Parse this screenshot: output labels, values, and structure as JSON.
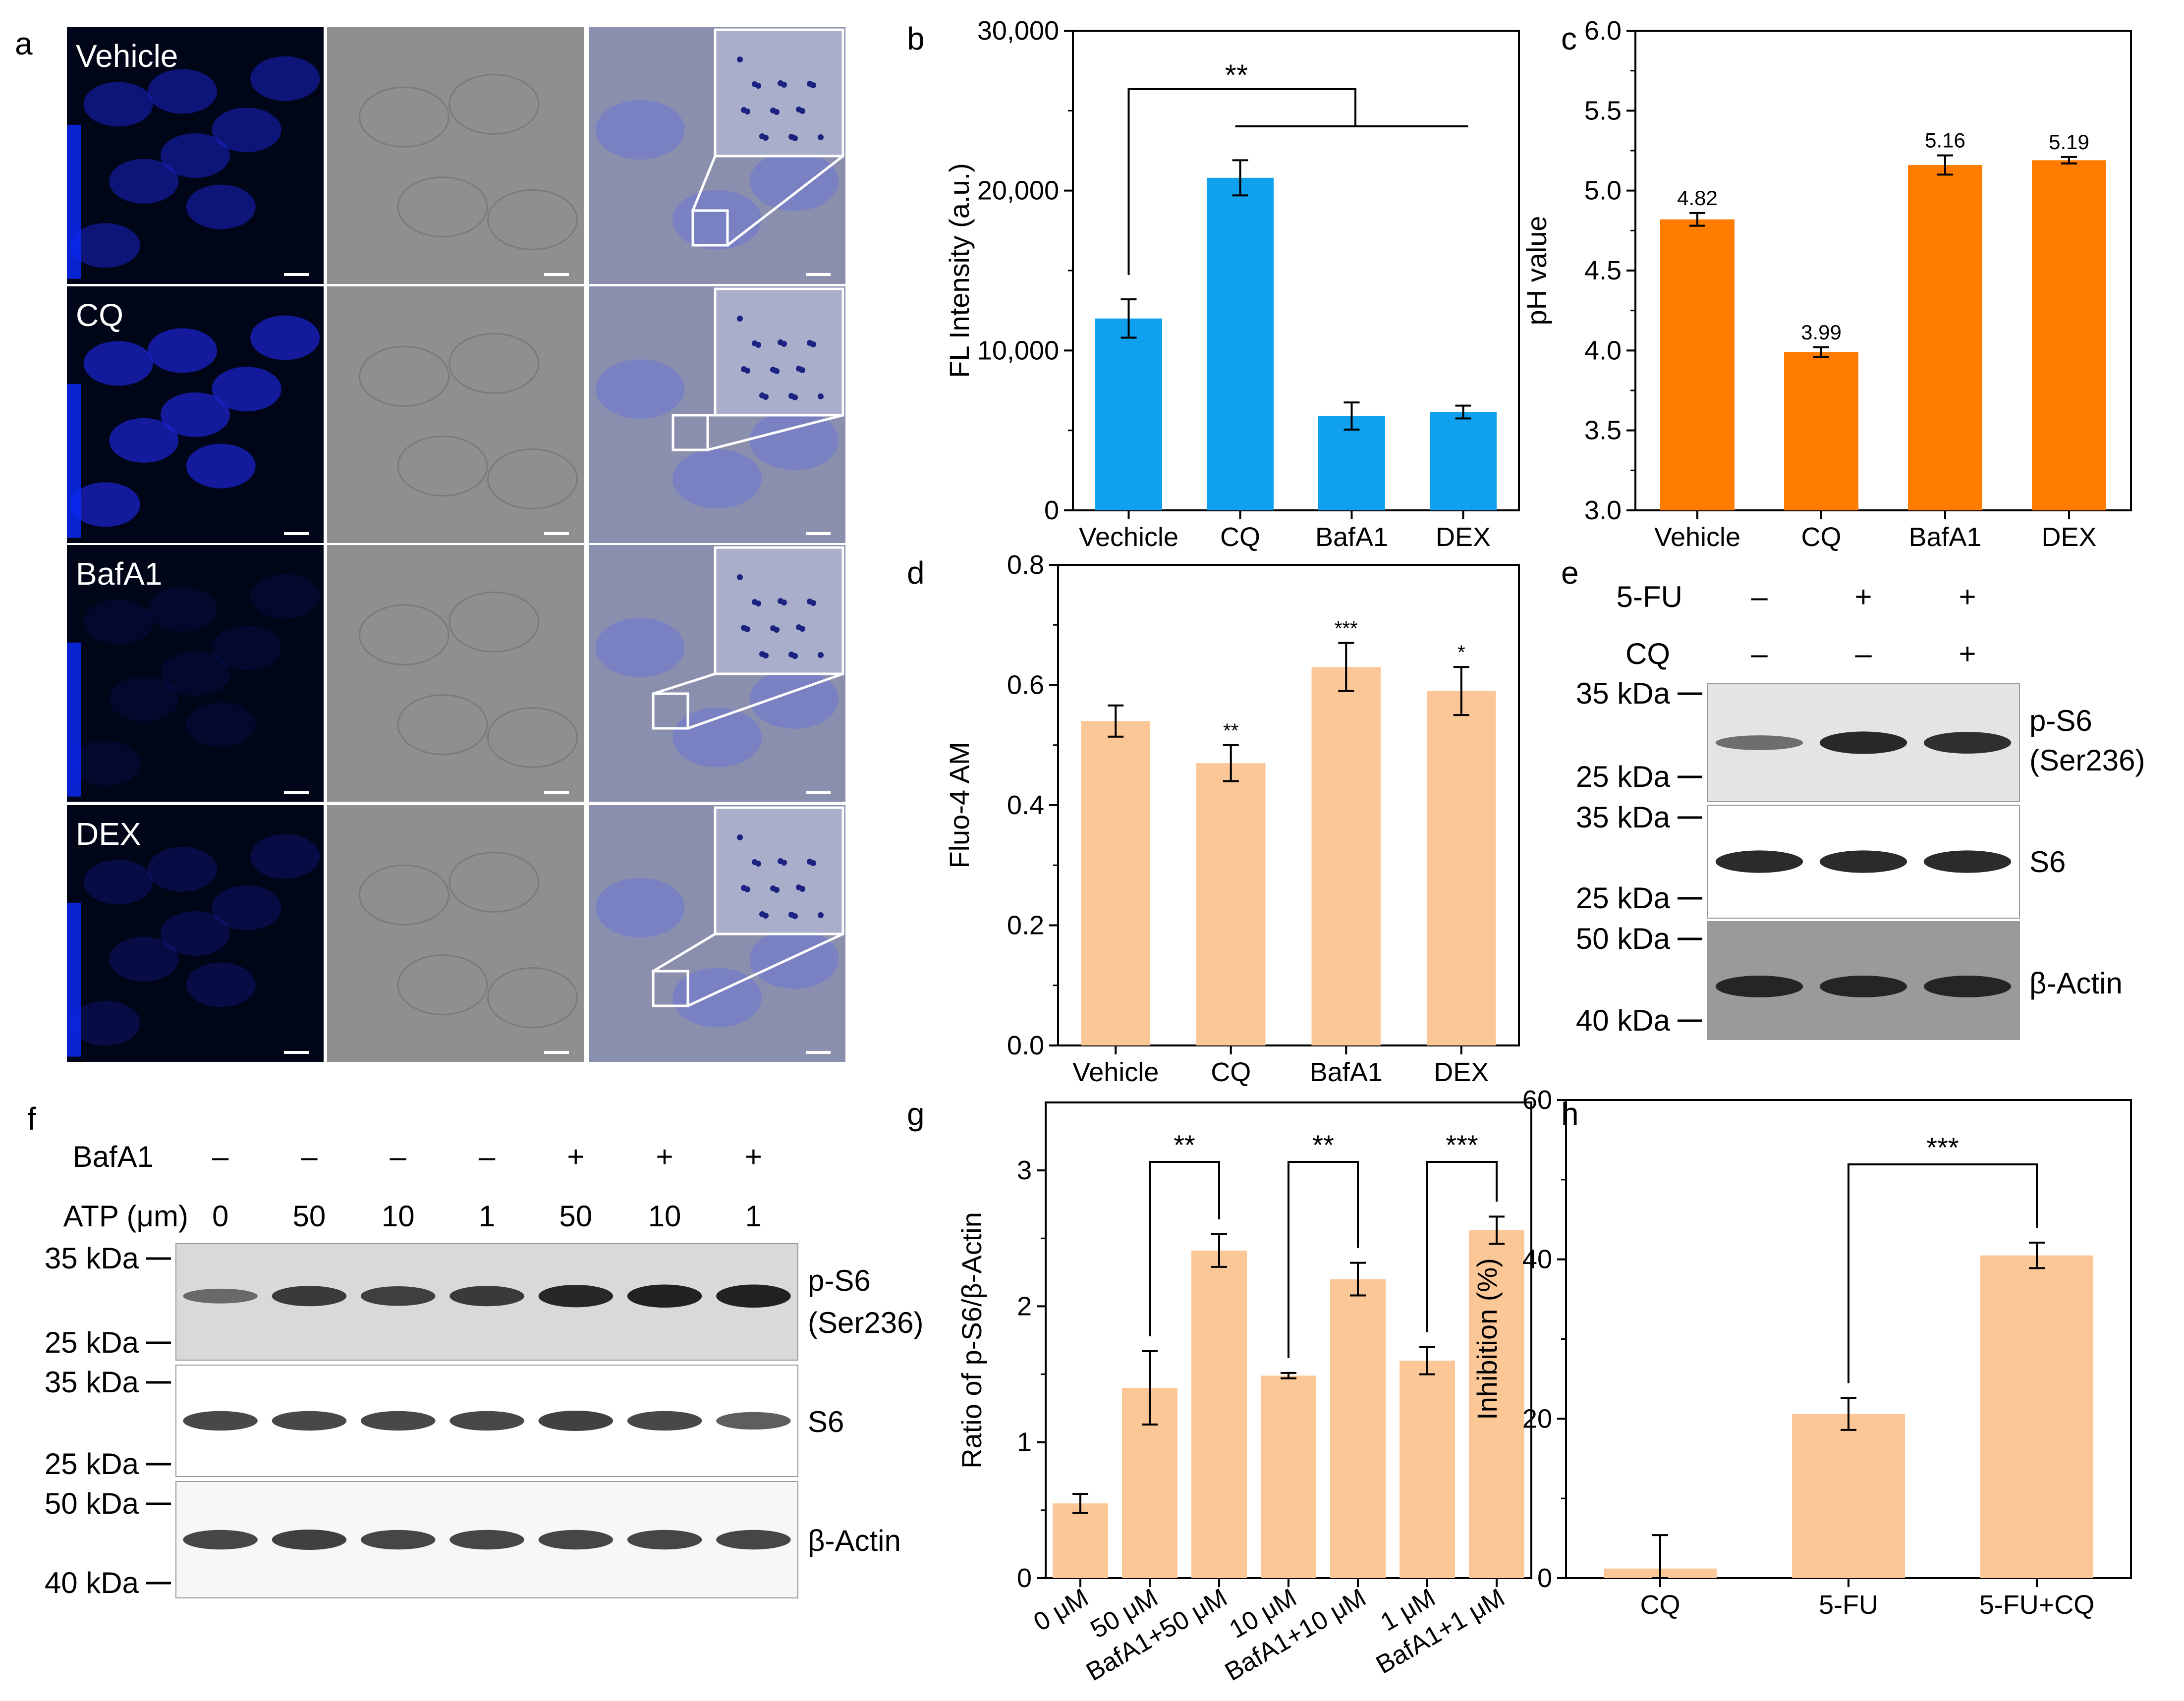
{
  "panel_letters": {
    "a": "a",
    "b": "b",
    "c": "c",
    "d": "d",
    "e": "e",
    "f": "f",
    "g": "g",
    "h": "h"
  },
  "colors": {
    "blue_bar": "#0fa0ee",
    "orange_bar": "#ff7c00",
    "peach_bar": "#fbc797",
    "micro_dark": "#000518",
    "micro_blue": "#1a22c8",
    "brightfield": "#8f8f8f",
    "blot_bg": "#eaeaea",
    "band": "#111111"
  },
  "micrographs": {
    "rows": [
      "Vehicle",
      "CQ",
      "BafA1",
      "DEX"
    ]
  },
  "chart_data": [
    {
      "panel": "b",
      "type": "bar",
      "categories": [
        "Vechicle",
        "CQ",
        "BafA1",
        "DEX"
      ],
      "values": [
        12000,
        20800,
        5900,
        6150
      ],
      "errors": [
        1200,
        1100,
        850,
        400
      ],
      "ylabel": "FL Intensity (a.u.)",
      "ylim": [
        0,
        30000
      ],
      "yticks": [
        "0",
        "10,000",
        "20,000",
        "30,000"
      ],
      "significance": "**"
    },
    {
      "panel": "c",
      "type": "bar",
      "categories": [
        "Vehicle",
        "CQ",
        "BafA1",
        "DEX"
      ],
      "values": [
        4.82,
        3.99,
        5.16,
        5.19
      ],
      "errors": [
        0.04,
        0.03,
        0.06,
        0.02
      ],
      "data_labels": [
        "4.82",
        "3.99",
        "5.16",
        "5.19"
      ],
      "ylabel": "pH value",
      "ylim": [
        3.0,
        6.0
      ],
      "yticks": [
        "3.0",
        "3.5",
        "4.0",
        "4.5",
        "5.0",
        "5.5",
        "6.0"
      ]
    },
    {
      "panel": "d",
      "type": "bar",
      "categories": [
        "Vehicle",
        "CQ",
        "BafA1",
        "DEX"
      ],
      "values": [
        0.54,
        0.47,
        0.63,
        0.59
      ],
      "errors": [
        0.026,
        0.03,
        0.04,
        0.04
      ],
      "stars": [
        "",
        "**",
        "***",
        "*"
      ],
      "ylabel": "Fluo-4 AM",
      "ylim": [
        0,
        0.8
      ],
      "yticks": [
        "0.0",
        "0.2",
        "0.4",
        "0.6",
        "0.8"
      ]
    },
    {
      "panel": "g",
      "type": "bar",
      "categories": [
        "0 μM",
        "50 μM",
        "BafA1+50 μM",
        "10 μM",
        "BafA1+10 μM",
        "1 μM",
        "BafA1+1 μM"
      ],
      "values": [
        0.55,
        1.4,
        2.41,
        1.49,
        2.2,
        1.6,
        2.56
      ],
      "errors": [
        0.07,
        0.27,
        0.12,
        0.02,
        0.12,
        0.1,
        0.1
      ],
      "ylabel": "Ratio of p-S6/β-Actin",
      "ylim": [
        0,
        3.5
      ],
      "yticks": [
        "0",
        "1",
        "2",
        "3"
      ],
      "significance": [
        "**",
        "**",
        "***"
      ]
    },
    {
      "panel": "h",
      "type": "bar",
      "categories": [
        "CQ",
        "5-FU",
        "5-FU+CQ"
      ],
      "values": [
        1.2,
        20.6,
        40.5
      ],
      "errors": [
        4.2,
        2.0,
        1.6
      ],
      "ylabel": "Inhibition (%)",
      "ylim": [
        0,
        60
      ],
      "yticks": [
        "0",
        "20",
        "40",
        "60"
      ],
      "significance": "***"
    }
  ],
  "blot_e": {
    "row_labels": [
      "5-FU",
      "CQ"
    ],
    "five_fu": [
      "–",
      "+",
      "+"
    ],
    "cq": [
      "–",
      "–",
      "+"
    ],
    "markers": [
      "35 kDa",
      "25 kDa",
      "35 kDa",
      "25 kDa",
      "50 kDa",
      "40 kDa"
    ],
    "proteins": [
      "p-S6",
      "(Ser236)",
      "S6",
      "β-Actin"
    ]
  },
  "blot_f": {
    "row_labels": [
      "BafA1",
      "ATP (μm)"
    ],
    "bafa1": [
      "–",
      "–",
      "–",
      "–",
      "+",
      "+",
      "+"
    ],
    "atp": [
      "0",
      "50",
      "10",
      "1",
      "50",
      "10",
      "1"
    ],
    "markers": [
      "35 kDa",
      "25 kDa",
      "35 kDa",
      "25 kDa",
      "50 kDa",
      "40 kDa"
    ],
    "proteins": [
      "p-S6",
      "(Ser236)",
      "S6",
      "β-Actin"
    ]
  }
}
